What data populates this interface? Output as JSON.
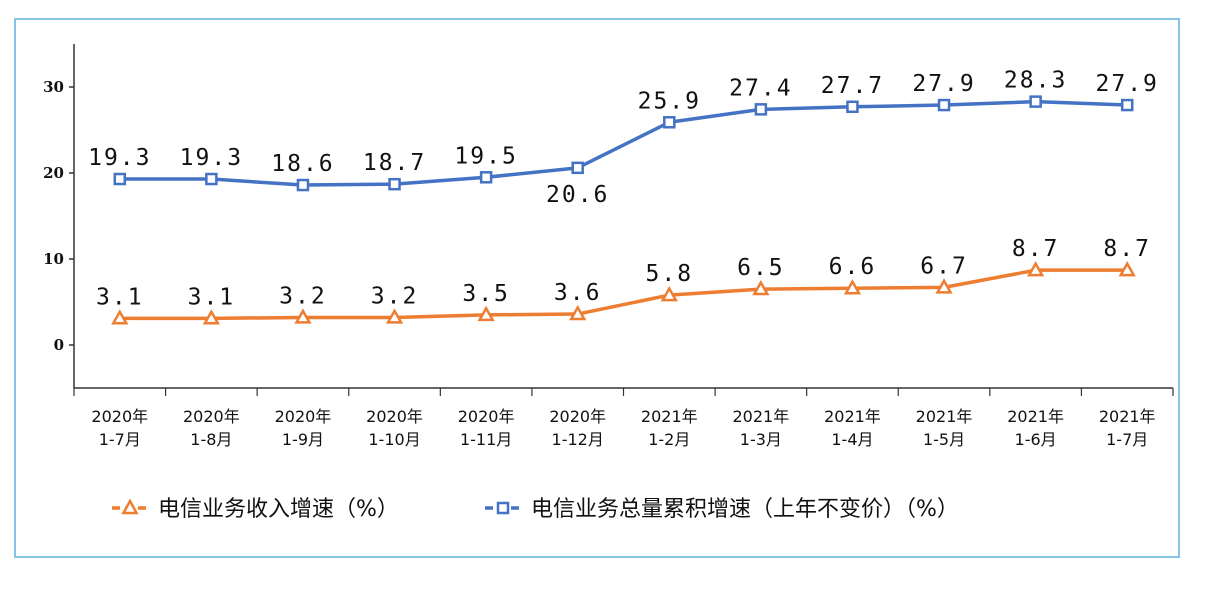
{
  "chart_data": {
    "type": "line",
    "categories": [
      [
        "2020年",
        "1-7月"
      ],
      [
        "2020年",
        "1-8月"
      ],
      [
        "2020年",
        "1-9月"
      ],
      [
        "2020年",
        "1-10月"
      ],
      [
        "2020年",
        "1-11月"
      ],
      [
        "2020年",
        "1-12月"
      ],
      [
        "2021年",
        "1-2月"
      ],
      [
        "2021年",
        "1-3月"
      ],
      [
        "2021年",
        "1-4月"
      ],
      [
        "2021年",
        "1-5月"
      ],
      [
        "2021年",
        "1-6月"
      ],
      [
        "2021年",
        "1-7月"
      ]
    ],
    "series": [
      {
        "name": "电信业务收入增速（%）",
        "color": "#ed7d31",
        "marker": "triangle",
        "values": [
          3.1,
          3.1,
          3.2,
          3.2,
          3.5,
          3.6,
          5.8,
          6.5,
          6.6,
          6.7,
          8.7,
          8.7
        ]
      },
      {
        "name": "电信业务总量累积增速（上年不变价）（%）",
        "color": "#4472c4",
        "marker": "square",
        "values": [
          19.3,
          19.3,
          18.6,
          18.7,
          19.5,
          20.6,
          25.9,
          27.4,
          27.7,
          27.9,
          28.3,
          27.9
        ]
      }
    ],
    "yticks": [
      0,
      10,
      20,
      30
    ],
    "ylim": [
      -5,
      35
    ],
    "grid": false,
    "legend_position": "bottom"
  }
}
